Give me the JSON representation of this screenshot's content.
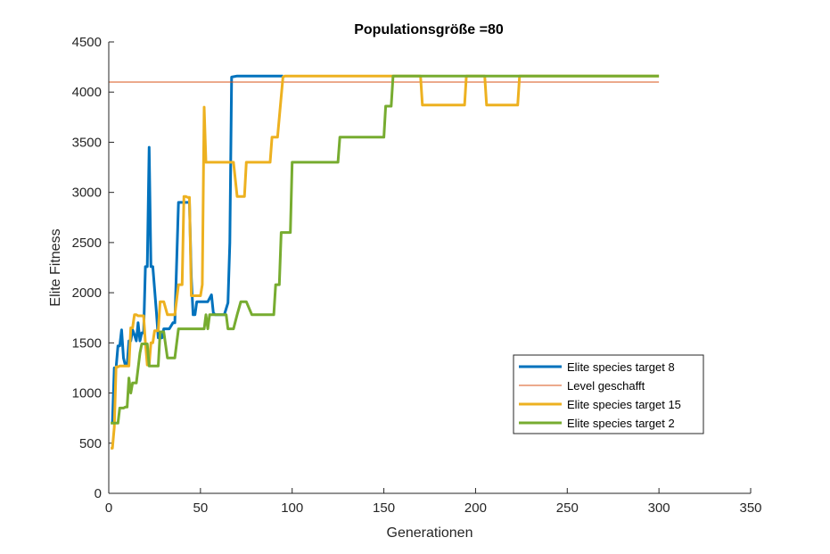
{
  "chart_data": {
    "type": "line",
    "title": "Populationsgröße =80",
    "xlabel": "Generationen",
    "ylabel": "Elite Fitness",
    "xlim": [
      0,
      350
    ],
    "ylim": [
      0,
      4500
    ],
    "xticks": [
      0,
      50,
      100,
      150,
      200,
      250,
      300,
      350
    ],
    "yticks": [
      0,
      500,
      1000,
      1500,
      2000,
      2500,
      3000,
      3500,
      4000,
      4500
    ],
    "grid": false,
    "legend_position": "bottom-right",
    "series": [
      {
        "name": "Elite species target 8",
        "color": "#0072BD",
        "line_width": 3,
        "x": [
          2,
          3,
          4,
          5,
          6,
          7,
          8,
          9,
          10,
          11,
          12,
          13,
          14,
          15,
          16,
          17,
          18,
          19,
          20,
          21,
          22,
          23,
          24,
          26,
          27,
          29,
          30,
          33,
          35,
          36,
          38,
          41,
          44,
          45,
          46,
          47,
          48,
          50,
          53,
          54,
          56,
          57,
          58,
          60,
          63,
          65,
          66,
          67,
          70,
          75,
          80,
          90,
          95
        ],
        "y": [
          700,
          1250,
          1250,
          1470,
          1470,
          1630,
          1350,
          1280,
          1280,
          1520,
          1520,
          1630,
          1580,
          1520,
          1700,
          1520,
          1600,
          1600,
          2260,
          2260,
          3450,
          2260,
          2260,
          1800,
          1550,
          1550,
          1640,
          1640,
          1700,
          1700,
          2900,
          2900,
          2900,
          2150,
          1780,
          1780,
          1910,
          1910,
          1910,
          1910,
          1980,
          1800,
          1780,
          1780,
          1780,
          1900,
          2500,
          4150,
          4160,
          4160,
          4160,
          4160,
          4160
        ]
      },
      {
        "name": "Level geschafft",
        "color": "#D95319",
        "line_width": 1,
        "x": [
          0,
          300
        ],
        "y": [
          4100,
          4100
        ]
      },
      {
        "name": "Elite species target 15",
        "color": "#EDB120",
        "line_width": 3,
        "x": [
          1,
          2,
          3,
          4,
          5,
          6,
          8,
          10,
          11,
          12,
          13,
          14,
          15,
          16,
          18,
          19,
          20,
          21,
          22,
          23,
          24,
          25,
          27,
          28,
          29,
          30,
          32,
          33,
          35,
          36,
          38,
          40,
          41,
          42,
          43,
          44,
          45,
          46,
          50,
          51,
          52,
          53,
          54,
          55,
          58,
          60,
          65,
          68,
          70,
          71,
          73,
          74,
          75,
          78,
          80,
          85,
          88,
          89,
          90,
          92,
          95,
          96,
          100,
          120,
          150,
          160,
          165,
          170,
          171,
          180,
          190,
          194,
          195,
          200,
          205,
          206,
          210,
          220,
          222,
          223,
          224,
          230,
          300
        ],
        "y": [
          450,
          450,
          660,
          1260,
          1260,
          1270,
          1270,
          1270,
          1270,
          1650,
          1650,
          1780,
          1780,
          1770,
          1770,
          1770,
          1500,
          1280,
          1280,
          1500,
          1500,
          1620,
          1620,
          1910,
          1910,
          1910,
          1780,
          1780,
          1780,
          1780,
          2080,
          2080,
          2960,
          2960,
          2950,
          2950,
          1970,
          1970,
          1970,
          2080,
          3850,
          3300,
          3300,
          3300,
          3300,
          3300,
          3300,
          3300,
          2960,
          2960,
          2960,
          2960,
          3300,
          3300,
          3300,
          3300,
          3300,
          3550,
          3550,
          3550,
          4150,
          4160,
          4160,
          4160,
          4160,
          4160,
          4160,
          4160,
          3870,
          3870,
          3870,
          3870,
          4160,
          4160,
          4160,
          3870,
          3870,
          3870,
          3870,
          3870,
          4160,
          4160,
          4160
        ]
      },
      {
        "name": "Elite species target 2",
        "color": "#77AC30",
        "line_width": 3,
        "x": [
          1,
          2,
          3,
          4,
          5,
          6,
          7,
          8,
          9,
          10,
          11,
          12,
          13,
          14,
          15,
          17,
          18,
          20,
          21,
          22,
          23,
          25,
          27,
          28,
          30,
          32,
          34,
          35,
          36,
          38,
          40,
          45,
          50,
          52,
          53,
          54,
          55,
          58,
          60,
          62,
          64,
          65,
          67,
          68,
          70,
          72,
          74,
          75,
          78,
          80,
          85,
          90,
          91,
          93,
          94,
          95,
          96,
          99,
          100,
          101,
          110,
          120,
          125,
          126,
          130,
          140,
          150,
          151,
          154,
          155,
          160,
          170,
          200,
          250,
          300
        ],
        "y": [
          700,
          700,
          700,
          700,
          700,
          850,
          850,
          850,
          860,
          860,
          1150,
          1000,
          1100,
          1100,
          1100,
          1400,
          1490,
          1490,
          1490,
          1270,
          1270,
          1270,
          1270,
          1610,
          1610,
          1350,
          1350,
          1350,
          1350,
          1640,
          1640,
          1640,
          1640,
          1640,
          1780,
          1640,
          1780,
          1780,
          1780,
          1780,
          1780,
          1640,
          1640,
          1640,
          1780,
          1910,
          1910,
          1910,
          1780,
          1780,
          1780,
          1780,
          2080,
          2080,
          2600,
          2600,
          2600,
          2600,
          3300,
          3300,
          3300,
          3300,
          3300,
          3550,
          3550,
          3550,
          3550,
          3860,
          3860,
          4160,
          4160,
          4160,
          4160,
          4160,
          4160
        ]
      }
    ]
  }
}
